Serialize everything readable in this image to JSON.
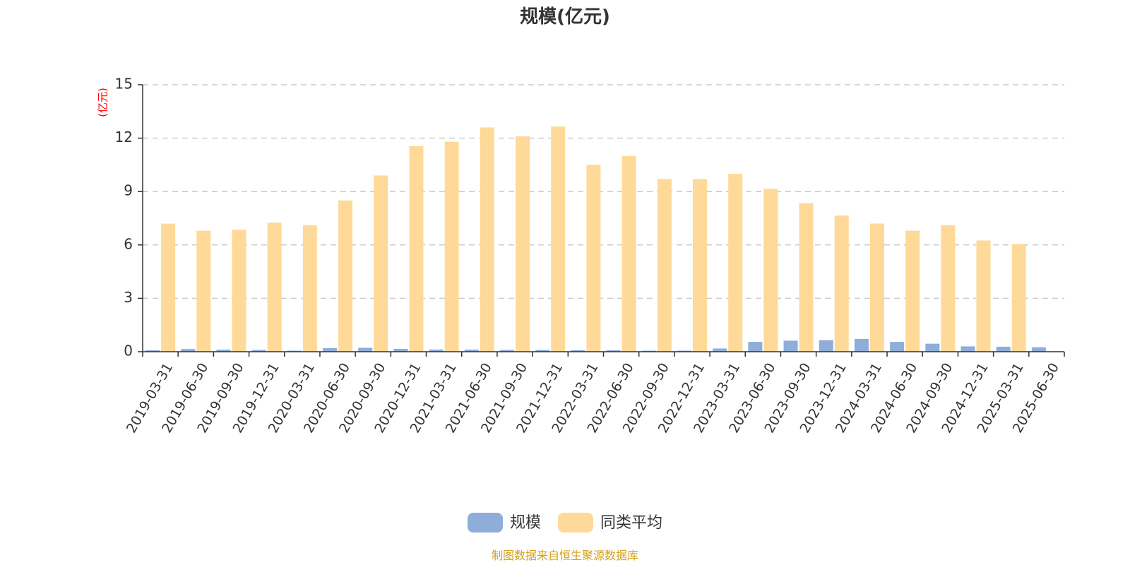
{
  "chart_data": {
    "type": "bar",
    "title": "规模(亿元)",
    "ylabel": "(亿元)",
    "xlabel": "",
    "ylim": [
      0,
      15
    ],
    "yticks": [
      0,
      3,
      6,
      9,
      12,
      15
    ],
    "grid": true,
    "legend_position": "bottom-center",
    "categories": [
      "2019-03-31",
      "2019-06-30",
      "2019-09-30",
      "2019-12-31",
      "2020-03-31",
      "2020-06-30",
      "2020-09-30",
      "2020-12-31",
      "2021-03-31",
      "2021-06-30",
      "2021-09-30",
      "2021-12-31",
      "2022-03-31",
      "2022-06-30",
      "2022-09-30",
      "2022-12-31",
      "2023-03-31",
      "2023-06-30",
      "2023-09-30",
      "2023-12-31",
      "2024-03-31",
      "2024-06-30",
      "2024-09-30",
      "2024-12-31",
      "2025-03-31",
      "2025-06-30"
    ],
    "series": [
      {
        "name": "规模",
        "color": "#8eadd9",
        "values": [
          0.08,
          0.15,
          0.12,
          0.1,
          0.06,
          0.2,
          0.22,
          0.16,
          0.12,
          0.12,
          0.1,
          0.1,
          0.09,
          0.08,
          0.06,
          0.06,
          0.18,
          0.55,
          0.62,
          0.65,
          0.72,
          0.55,
          0.45,
          0.3,
          0.28,
          0.25
        ]
      },
      {
        "name": "同类平均",
        "color": "#ffd998",
        "values": [
          7.2,
          6.8,
          6.85,
          7.25,
          7.1,
          8.5,
          9.9,
          11.55,
          11.8,
          12.6,
          12.1,
          12.65,
          10.5,
          11.0,
          9.7,
          9.7,
          10.0,
          9.15,
          8.35,
          7.65,
          7.2,
          6.8,
          7.1,
          6.25,
          6.05,
          null
        ]
      }
    ],
    "source_text": "制图数据来自恒生聚源数据库",
    "source_color": "#d4a017"
  }
}
